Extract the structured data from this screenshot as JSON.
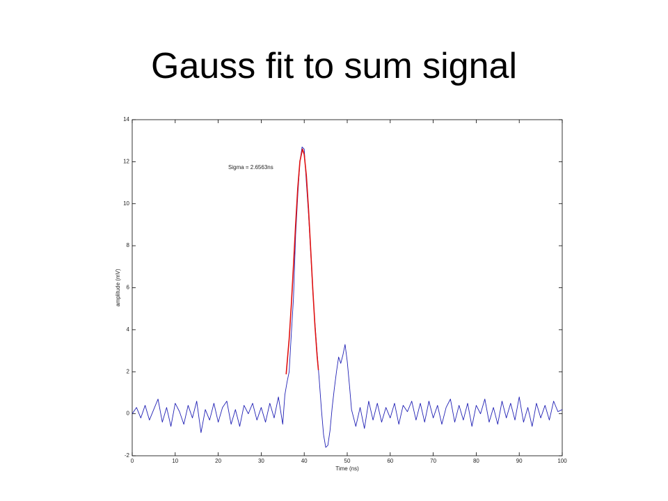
{
  "chart_data": {
    "type": "line",
    "title": "Gauss fit to sum signal",
    "xlabel": "Time (ns)",
    "ylabel": "amplitude (mV)",
    "annotation": "Sigma = 2.6563ns",
    "xlim": [
      0,
      100
    ],
    "ylim": [
      -2,
      14
    ],
    "xticks": [
      0,
      10,
      20,
      30,
      40,
      50,
      60,
      70,
      80,
      90,
      100
    ],
    "yticks": [
      -2,
      0,
      2,
      4,
      6,
      8,
      10,
      12,
      14
    ],
    "series": [
      {
        "color": "#1f1fb4",
        "x": [
          0,
          1,
          2,
          3,
          4,
          5,
          6,
          7,
          8,
          9,
          10,
          11,
          12,
          13,
          14,
          15,
          16,
          17,
          18,
          19,
          20,
          21,
          22,
          23,
          24,
          25,
          26,
          27,
          28,
          29,
          30,
          31,
          32,
          33,
          34,
          35,
          35.5,
          36,
          36.5,
          37,
          37.5,
          38,
          38.5,
          39,
          39.5,
          40,
          40.5,
          41,
          41.5,
          42,
          42.5,
          43,
          43.5,
          44,
          44.5,
          45,
          45.5,
          46,
          46.5,
          47,
          47.5,
          48,
          48.5,
          49,
          49.5,
          50,
          50.5,
          51,
          52,
          53,
          54,
          55,
          56,
          57,
          58,
          59,
          60,
          61,
          62,
          63,
          64,
          65,
          66,
          67,
          68,
          69,
          70,
          71,
          72,
          73,
          74,
          75,
          76,
          77,
          78,
          79,
          80,
          81,
          82,
          83,
          84,
          85,
          86,
          87,
          88,
          89,
          90,
          91,
          92,
          93,
          94,
          95,
          96,
          97,
          98,
          99,
          100
        ],
        "values": [
          0,
          0.3,
          -0.2,
          0.4,
          -0.3,
          0.2,
          0.7,
          -0.4,
          0.3,
          -0.6,
          0.5,
          0.1,
          -0.5,
          0.4,
          -0.2,
          0.6,
          -0.9,
          0.2,
          -0.3,
          0.5,
          -0.4,
          0.3,
          0.6,
          -0.5,
          0.2,
          -0.6,
          0.4,
          0,
          0.5,
          -0.3,
          0.3,
          -0.4,
          0.5,
          -0.2,
          0.8,
          -0.5,
          0.9,
          1.5,
          2.0,
          3.8,
          5.5,
          8.5,
          10.4,
          12.0,
          12.7,
          12.6,
          11.0,
          9.5,
          7.7,
          5.8,
          4.3,
          2.9,
          1.6,
          0.2,
          -1.0,
          -1.6,
          -1.5,
          -0.8,
          0.3,
          1.2,
          2.0,
          2.7,
          2.4,
          2.8,
          3.3,
          2.5,
          1.4,
          0.2,
          -0.6,
          0.3,
          -0.7,
          0.6,
          -0.3,
          0.5,
          -0.4,
          0.3,
          -0.2,
          0.5,
          -0.5,
          0.4,
          0.1,
          0.6,
          -0.3,
          0.5,
          -0.4,
          0.6,
          -0.2,
          0.4,
          -0.5,
          0.3,
          0.7,
          -0.4,
          0.4,
          -0.3,
          0.5,
          -0.6,
          0.4,
          0,
          0.7,
          -0.4,
          0.3,
          -0.5,
          0.6,
          -0.2,
          0.5,
          -0.3,
          0.8,
          -0.4,
          0.3,
          -0.6,
          0.5,
          -0.2,
          0.4,
          -0.3,
          0.6,
          0.1,
          0.2
        ]
      },
      {
        "color": "#e01010",
        "x": [
          35.8,
          36.5,
          37,
          37.5,
          38,
          38.5,
          39,
          39.6,
          40,
          40.5,
          41,
          41.5,
          42,
          42.5,
          43,
          43.3
        ],
        "values": [
          1.88,
          3.56,
          5.18,
          7.05,
          9.0,
          10.75,
          12.02,
          12.6,
          12.34,
          11.33,
          9.74,
          7.84,
          5.91,
          4.17,
          2.75,
          2.08
        ]
      }
    ]
  }
}
